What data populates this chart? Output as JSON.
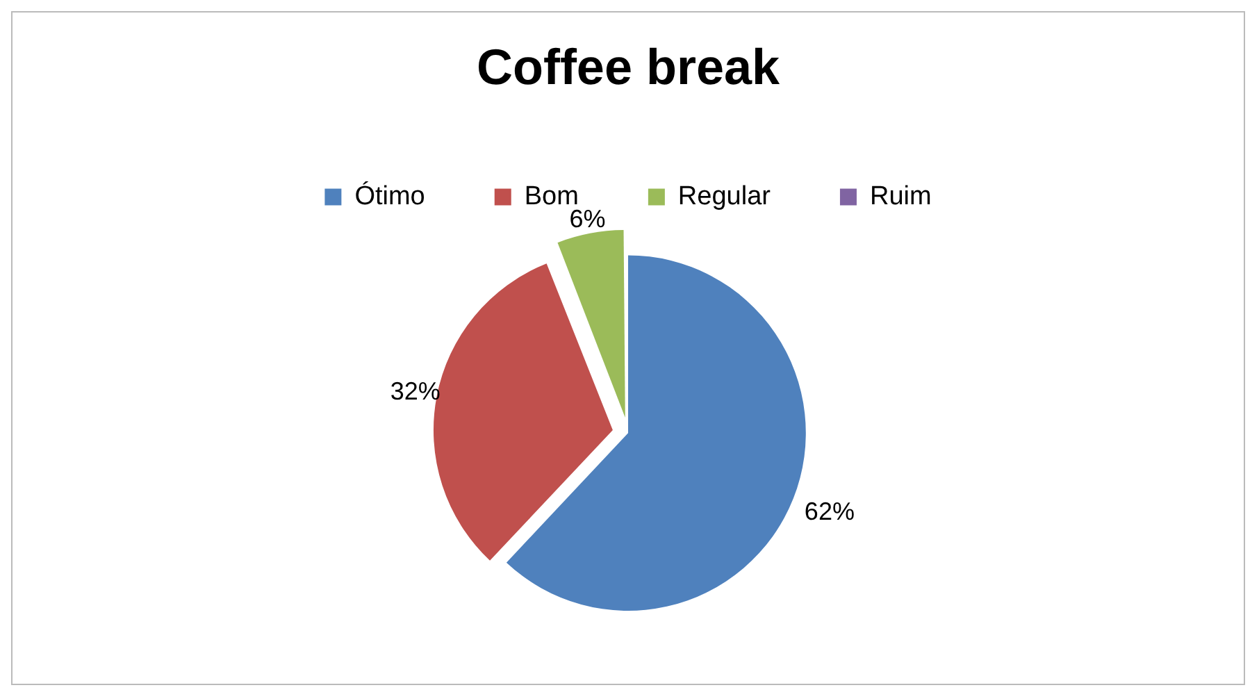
{
  "chart_data": {
    "type": "pie",
    "title": "Coffee break",
    "categories": [
      "Ótimo",
      "Bom",
      "Regular",
      "Ruim"
    ],
    "values": [
      62,
      32,
      6,
      0
    ],
    "colors": [
      "#4f81bd",
      "#c0504d",
      "#9bbb59",
      "#8064a2"
    ],
    "value_labels": [
      "62%",
      "32%",
      "6%",
      null
    ],
    "legend": "top"
  }
}
